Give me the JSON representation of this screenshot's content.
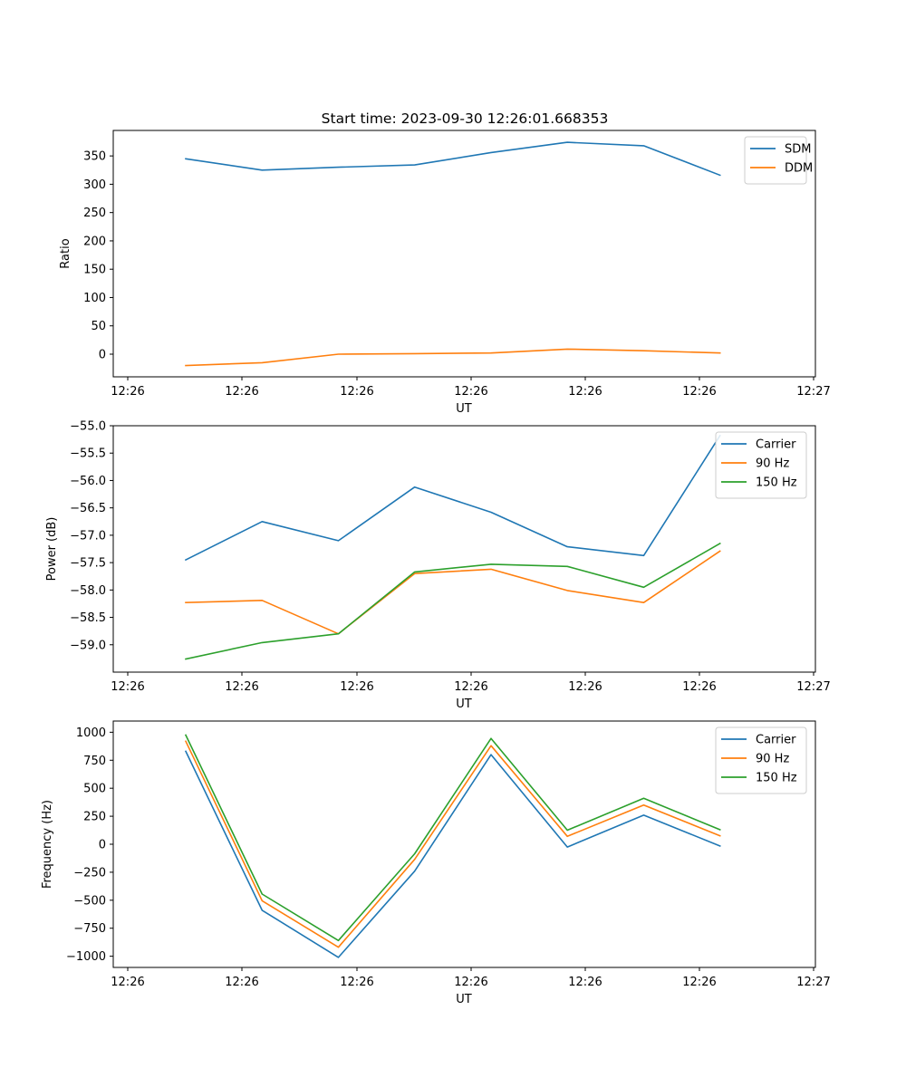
{
  "figure_title": "Start time: 2023-09-30 12:26:01.668353",
  "chart_data": [
    {
      "type": "line",
      "title": "Start time: 2023-09-30 12:26:01.668353",
      "xlabel": "UT",
      "ylabel": "Ratio",
      "x_tick_labels": [
        "12:26",
        "12:26",
        "12:26",
        "12:26",
        "12:26",
        "12:26",
        "12:27"
      ],
      "xlim": [
        -0.2,
        9.0
      ],
      "x": [
        0.75,
        1.75,
        2.75,
        3.75,
        4.75,
        5.75,
        6.75,
        7.75
      ],
      "ylim": [
        -40,
        395
      ],
      "y_ticks": [
        0,
        50,
        100,
        150,
        200,
        250,
        300,
        350
      ],
      "legend": "top-right",
      "series": [
        {
          "name": "SDM",
          "color": "#1f77b4",
          "values": [
            345,
            325,
            330,
            334,
            356,
            374,
            368,
            316
          ]
        },
        {
          "name": "DDM",
          "color": "#ff7f0e",
          "values": [
            -20,
            -15,
            0,
            1,
            2,
            9,
            6,
            2
          ]
        }
      ]
    },
    {
      "type": "line",
      "xlabel": "UT",
      "ylabel": "Power (dB)",
      "x_tick_labels": [
        "12:26",
        "12:26",
        "12:26",
        "12:26",
        "12:26",
        "12:26",
        "12:27"
      ],
      "xlim": [
        -0.2,
        9.0
      ],
      "x": [
        0.75,
        1.75,
        2.75,
        3.75,
        4.75,
        5.75,
        6.75,
        7.75
      ],
      "ylim": [
        -59.5,
        -55.0
      ],
      "y_ticks": [
        -59.0,
        -58.5,
        -58.0,
        -57.5,
        -57.0,
        -56.5,
        -56.0,
        -55.5,
        -55.0
      ],
      "y_tick_labels": [
        "−59.0",
        "−58.5",
        "−58.0",
        "−57.5",
        "−57.0",
        "−56.5",
        "−56.0",
        "−55.5",
        "−55.0"
      ],
      "legend": "top-right",
      "series": [
        {
          "name": "Carrier",
          "color": "#1f77b4",
          "values": [
            -57.45,
            -56.75,
            -57.1,
            -56.12,
            -56.58,
            -57.21,
            -57.37,
            -55.18
          ]
        },
        {
          "name": "90 Hz",
          "color": "#ff7f0e",
          "values": [
            -58.23,
            -58.19,
            -58.8,
            -57.7,
            -57.62,
            -58.01,
            -58.23,
            -57.29
          ]
        },
        {
          "name": "150 Hz",
          "color": "#2ca02c",
          "values": [
            -59.26,
            -58.96,
            -58.8,
            -57.67,
            -57.53,
            -57.57,
            -57.95,
            -57.15
          ]
        }
      ]
    },
    {
      "type": "line",
      "xlabel": "UT",
      "ylabel": "Frequency (Hz)",
      "x_tick_labels": [
        "12:26",
        "12:26",
        "12:26",
        "12:26",
        "12:26",
        "12:26",
        "12:27"
      ],
      "xlim": [
        -0.2,
        9.0
      ],
      "x": [
        0.75,
        1.75,
        2.75,
        3.75,
        4.75,
        5.75,
        6.75,
        7.75
      ],
      "ylim": [
        -1100,
        1100
      ],
      "y_ticks": [
        -1000,
        -750,
        -500,
        -250,
        0,
        250,
        500,
        750,
        1000
      ],
      "y_tick_labels": [
        "−1000",
        "−750",
        "−500",
        "−250",
        "0",
        "250",
        "500",
        "750",
        "1000"
      ],
      "legend": "top-right",
      "series": [
        {
          "name": "Carrier",
          "color": "#1f77b4",
          "values": [
            830,
            -590,
            -1010,
            -240,
            800,
            -25,
            260,
            -15
          ]
        },
        {
          "name": "90 Hz",
          "color": "#ff7f0e",
          "values": [
            920,
            -505,
            -920,
            -135,
            880,
            70,
            350,
            75
          ]
        },
        {
          "name": "150 Hz",
          "color": "#2ca02c",
          "values": [
            975,
            -445,
            -860,
            -85,
            945,
            125,
            410,
            130
          ]
        }
      ]
    }
  ]
}
